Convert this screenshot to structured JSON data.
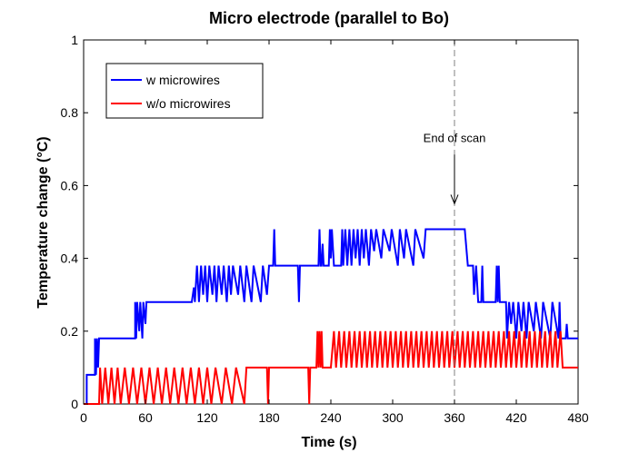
{
  "chart_data": {
    "type": "line",
    "title": "Micro electrode (parallel to Bo)",
    "xlabel": "Time (s)",
    "ylabel": "Temperature change (°C)",
    "xlim": [
      0,
      480
    ],
    "ylim": [
      0,
      1
    ],
    "xticks": [
      0,
      60,
      120,
      180,
      240,
      300,
      360,
      420,
      480
    ],
    "yticks": [
      0,
      0.2,
      0.4,
      0.6,
      0.8,
      1
    ],
    "grid": false,
    "legend_position": "top-left",
    "colors": {
      "blue": "#0000ff",
      "red": "#ff0000",
      "vline": "#808080",
      "axis": "#000000"
    },
    "series": [
      {
        "name": "w microwires",
        "color": "#0000ff",
        "points": [
          [
            0,
            0
          ],
          [
            3,
            0
          ],
          [
            3,
            0.08
          ],
          [
            11,
            0.08
          ],
          [
            11,
            0.18
          ],
          [
            12,
            0.08
          ],
          [
            13,
            0.18
          ],
          [
            14,
            0.1
          ],
          [
            15,
            0.18
          ],
          [
            50,
            0.18
          ],
          [
            50,
            0.28
          ],
          [
            51,
            0.18
          ],
          [
            52,
            0.28
          ],
          [
            54,
            0.2
          ],
          [
            55,
            0.28
          ],
          [
            57,
            0.18
          ],
          [
            58,
            0.28
          ],
          [
            60,
            0.22
          ],
          [
            61,
            0.28
          ],
          [
            105,
            0.28
          ],
          [
            107,
            0.32
          ],
          [
            108,
            0.28
          ],
          [
            110,
            0.38
          ],
          [
            112,
            0.28
          ],
          [
            114,
            0.38
          ],
          [
            116,
            0.3
          ],
          [
            118,
            0.38
          ],
          [
            120,
            0.28
          ],
          [
            122,
            0.38
          ],
          [
            125,
            0.3
          ],
          [
            127,
            0.38
          ],
          [
            129,
            0.28
          ],
          [
            131,
            0.38
          ],
          [
            134,
            0.3
          ],
          [
            136,
            0.38
          ],
          [
            139,
            0.28
          ],
          [
            141,
            0.38
          ],
          [
            143,
            0.3
          ],
          [
            145,
            0.38
          ],
          [
            150,
            0.3
          ],
          [
            152,
            0.38
          ],
          [
            156,
            0.28
          ],
          [
            158,
            0.38
          ],
          [
            163,
            0.28
          ],
          [
            165,
            0.38
          ],
          [
            172,
            0.28
          ],
          [
            174,
            0.38
          ],
          [
            178,
            0.3
          ],
          [
            180,
            0.38
          ],
          [
            184,
            0.38
          ],
          [
            185,
            0.48
          ],
          [
            186,
            0.38
          ],
          [
            208,
            0.38
          ],
          [
            209,
            0.28
          ],
          [
            210,
            0.38
          ],
          [
            228,
            0.38
          ],
          [
            229,
            0.48
          ],
          [
            230,
            0.38
          ],
          [
            231,
            0.38
          ],
          [
            232,
            0.44
          ],
          [
            233,
            0.38
          ],
          [
            238,
            0.38
          ],
          [
            239,
            0.48
          ],
          [
            240,
            0.4
          ],
          [
            241,
            0.48
          ],
          [
            243,
            0.38
          ],
          [
            250,
            0.38
          ],
          [
            251,
            0.48
          ],
          [
            252,
            0.38
          ],
          [
            254,
            0.48
          ],
          [
            256,
            0.38
          ],
          [
            258,
            0.48
          ],
          [
            260,
            0.38
          ],
          [
            262,
            0.48
          ],
          [
            264,
            0.4
          ],
          [
            266,
            0.48
          ],
          [
            268,
            0.38
          ],
          [
            270,
            0.48
          ],
          [
            272,
            0.4
          ],
          [
            274,
            0.48
          ],
          [
            277,
            0.38
          ],
          [
            279,
            0.48
          ],
          [
            282,
            0.42
          ],
          [
            284,
            0.48
          ],
          [
            289,
            0.4
          ],
          [
            291,
            0.48
          ],
          [
            297,
            0.42
          ],
          [
            299,
            0.48
          ],
          [
            305,
            0.38
          ],
          [
            307,
            0.48
          ],
          [
            311,
            0.4
          ],
          [
            313,
            0.48
          ],
          [
            320,
            0.38
          ],
          [
            322,
            0.48
          ],
          [
            330,
            0.4
          ],
          [
            332,
            0.48
          ],
          [
            370,
            0.48
          ],
          [
            373,
            0.38
          ],
          [
            378,
            0.38
          ],
          [
            379,
            0.3
          ],
          [
            381,
            0.38
          ],
          [
            383,
            0.28
          ],
          [
            386,
            0.28
          ],
          [
            387,
            0.38
          ],
          [
            388,
            0.28
          ],
          [
            400,
            0.28
          ],
          [
            401,
            0.38
          ],
          [
            402,
            0.28
          ],
          [
            403,
            0.38
          ],
          [
            404,
            0.28
          ],
          [
            410,
            0.28
          ],
          [
            411,
            0.18
          ],
          [
            413,
            0.28
          ],
          [
            415,
            0.22
          ],
          [
            417,
            0.28
          ],
          [
            420,
            0.18
          ],
          [
            422,
            0.28
          ],
          [
            425,
            0.2
          ],
          [
            427,
            0.28
          ],
          [
            430,
            0.18
          ],
          [
            432,
            0.28
          ],
          [
            437,
            0.2
          ],
          [
            439,
            0.28
          ],
          [
            444,
            0.18
          ],
          [
            446,
            0.28
          ],
          [
            453,
            0.18
          ],
          [
            455,
            0.28
          ],
          [
            461,
            0.18
          ],
          [
            462,
            0.28
          ],
          [
            463,
            0.18
          ],
          [
            468,
            0.18
          ],
          [
            469,
            0.22
          ],
          [
            470,
            0.18
          ],
          [
            471,
            0.18
          ],
          [
            480,
            0.18
          ]
        ]
      },
      {
        "name": "w/o microwires",
        "color": "#ff0000",
        "points": [
          [
            0,
            0
          ],
          [
            15,
            0
          ],
          [
            16,
            0.1
          ],
          [
            18,
            0
          ],
          [
            21,
            0.1
          ],
          [
            24,
            0
          ],
          [
            27,
            0.1
          ],
          [
            30,
            0
          ],
          [
            33,
            0.1
          ],
          [
            36,
            0
          ],
          [
            40,
            0.1
          ],
          [
            44,
            0
          ],
          [
            48,
            0.1
          ],
          [
            52,
            0
          ],
          [
            56,
            0.1
          ],
          [
            60,
            0
          ],
          [
            64,
            0.1
          ],
          [
            68,
            0
          ],
          [
            72,
            0.1
          ],
          [
            76,
            0
          ],
          [
            80,
            0.1
          ],
          [
            84,
            0
          ],
          [
            88,
            0.1
          ],
          [
            92,
            0
          ],
          [
            96,
            0.1
          ],
          [
            100,
            0
          ],
          [
            104,
            0.1
          ],
          [
            108,
            0
          ],
          [
            112,
            0.1
          ],
          [
            116,
            0
          ],
          [
            120,
            0.1
          ],
          [
            124,
            0
          ],
          [
            128,
            0.1
          ],
          [
            134,
            0
          ],
          [
            138,
            0.1
          ],
          [
            144,
            0
          ],
          [
            148,
            0.1
          ],
          [
            156,
            0
          ],
          [
            158,
            0.1
          ],
          [
            178,
            0.1
          ],
          [
            179,
            0
          ],
          [
            180,
            0.1
          ],
          [
            218,
            0.1
          ],
          [
            219,
            0
          ],
          [
            220,
            0.1
          ],
          [
            226,
            0.1
          ],
          [
            227,
            0.2
          ],
          [
            228,
            0.1
          ],
          [
            229,
            0.2
          ],
          [
            230,
            0.1
          ],
          [
            231,
            0.2
          ],
          [
            232,
            0.1
          ],
          [
            240,
            0.1
          ],
          [
            243,
            0.2
          ],
          [
            245,
            0.1
          ],
          [
            248,
            0.2
          ],
          [
            250,
            0.1
          ],
          [
            253,
            0.2
          ],
          [
            255,
            0.1
          ],
          [
            258,
            0.2
          ],
          [
            260,
            0.1
          ],
          [
            263,
            0.2
          ],
          [
            265,
            0.1
          ],
          [
            268,
            0.2
          ],
          [
            270,
            0.1
          ],
          [
            273,
            0.2
          ],
          [
            275,
            0.1
          ],
          [
            278,
            0.2
          ],
          [
            280,
            0.1
          ],
          [
            283,
            0.2
          ],
          [
            285,
            0.1
          ],
          [
            288,
            0.2
          ],
          [
            290,
            0.1
          ],
          [
            293,
            0.2
          ],
          [
            295,
            0.1
          ],
          [
            298,
            0.2
          ],
          [
            300,
            0.1
          ],
          [
            303,
            0.2
          ],
          [
            305,
            0.1
          ],
          [
            308,
            0.2
          ],
          [
            310,
            0.1
          ],
          [
            313,
            0.2
          ],
          [
            315,
            0.1
          ],
          [
            318,
            0.2
          ],
          [
            320,
            0.1
          ],
          [
            323,
            0.2
          ],
          [
            325,
            0.1
          ],
          [
            328,
            0.2
          ],
          [
            330,
            0.1
          ],
          [
            333,
            0.2
          ],
          [
            335,
            0.1
          ],
          [
            338,
            0.2
          ],
          [
            340,
            0.1
          ],
          [
            343,
            0.2
          ],
          [
            345,
            0.1
          ],
          [
            348,
            0.2
          ],
          [
            350,
            0.1
          ],
          [
            353,
            0.2
          ],
          [
            355,
            0.1
          ],
          [
            358,
            0.2
          ],
          [
            360,
            0.1
          ],
          [
            363,
            0.2
          ],
          [
            365,
            0.1
          ],
          [
            368,
            0.2
          ],
          [
            370,
            0.1
          ],
          [
            373,
            0.2
          ],
          [
            375,
            0.1
          ],
          [
            378,
            0.2
          ],
          [
            380,
            0.1
          ],
          [
            383,
            0.2
          ],
          [
            385,
            0.1
          ],
          [
            388,
            0.2
          ],
          [
            390,
            0.1
          ],
          [
            393,
            0.2
          ],
          [
            395,
            0.1
          ],
          [
            398,
            0.2
          ],
          [
            400,
            0.1
          ],
          [
            403,
            0.2
          ],
          [
            405,
            0.1
          ],
          [
            408,
            0.2
          ],
          [
            410,
            0.1
          ],
          [
            413,
            0.2
          ],
          [
            415,
            0.1
          ],
          [
            418,
            0.2
          ],
          [
            420,
            0.1
          ],
          [
            423,
            0.2
          ],
          [
            425,
            0.1
          ],
          [
            428,
            0.2
          ],
          [
            430,
            0.1
          ],
          [
            433,
            0.2
          ],
          [
            435,
            0.1
          ],
          [
            438,
            0.2
          ],
          [
            440,
            0.1
          ],
          [
            443,
            0.2
          ],
          [
            445,
            0.1
          ],
          [
            448,
            0.2
          ],
          [
            450,
            0.1
          ],
          [
            453,
            0.2
          ],
          [
            455,
            0.1
          ],
          [
            458,
            0.2
          ],
          [
            460,
            0.1
          ],
          [
            463,
            0.2
          ],
          [
            465,
            0.1
          ],
          [
            470,
            0.1
          ],
          [
            480,
            0.1
          ]
        ]
      }
    ],
    "vline": {
      "x": 360,
      "style": "dashed"
    },
    "annotation": {
      "text": "End of scan",
      "x": 360,
      "y": 0.72,
      "arrow_to": [
        360,
        0.55
      ]
    }
  }
}
